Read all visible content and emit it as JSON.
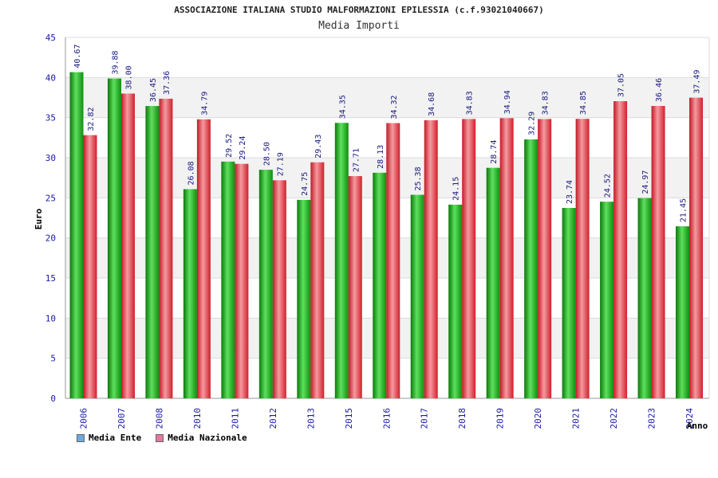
{
  "chart_data": {
    "type": "bar",
    "title": "ASSOCIAZIONE ITALIANA STUDIO MALFORMAZIONI EPILESSIA (c.f.93021040667)",
    "subtitle": "Media Importi",
    "xlabel": "Anno",
    "ylabel": "Euro",
    "ylim": [
      0,
      45
    ],
    "yticks": [
      "0",
      "5",
      "10",
      "15",
      "20",
      "25",
      "30",
      "35",
      "40",
      "45"
    ],
    "categories": [
      "2006",
      "2007",
      "2008",
      "2010",
      "2011",
      "2012",
      "2013",
      "2015",
      "2016",
      "2017",
      "2018",
      "2019",
      "2020",
      "2021",
      "2022",
      "2023",
      "2024"
    ],
    "series": [
      {
        "name": "Media Ente",
        "color": "#1aa31a",
        "legend_color": "#6fa8dc",
        "values": [
          40.67,
          39.88,
          36.45,
          26.08,
          29.52,
          28.5,
          24.75,
          34.35,
          28.13,
          25.38,
          24.15,
          28.74,
          32.29,
          23.74,
          24.52,
          24.97,
          21.45
        ],
        "labels": [
          "40.67",
          "39.88",
          "36.45",
          "26.08",
          "29.52",
          "28.50",
          "24.75",
          "34.35",
          "28.13",
          "25.38",
          "24.15",
          "28.74",
          "32.29",
          "23.74",
          "24.52",
          "24.97",
          "21.45"
        ]
      },
      {
        "name": "Media Nazionale",
        "color": "#e0303a",
        "legend_color": "#e07aa0",
        "values": [
          32.82,
          38.0,
          37.36,
          34.79,
          29.24,
          27.19,
          29.43,
          27.71,
          34.32,
          34.68,
          34.83,
          34.94,
          34.83,
          34.85,
          37.05,
          36.46,
          37.49
        ],
        "labels": [
          "32.82",
          "38.00",
          "37.36",
          "34.79",
          "29.24",
          "27.19",
          "29.43",
          "27.71",
          "34.32",
          "34.68",
          "34.83",
          "34.94",
          "34.83",
          "34.85",
          "37.05",
          "36.46",
          "37.49"
        ]
      }
    ],
    "grid": true,
    "legend": "bottom-left"
  }
}
